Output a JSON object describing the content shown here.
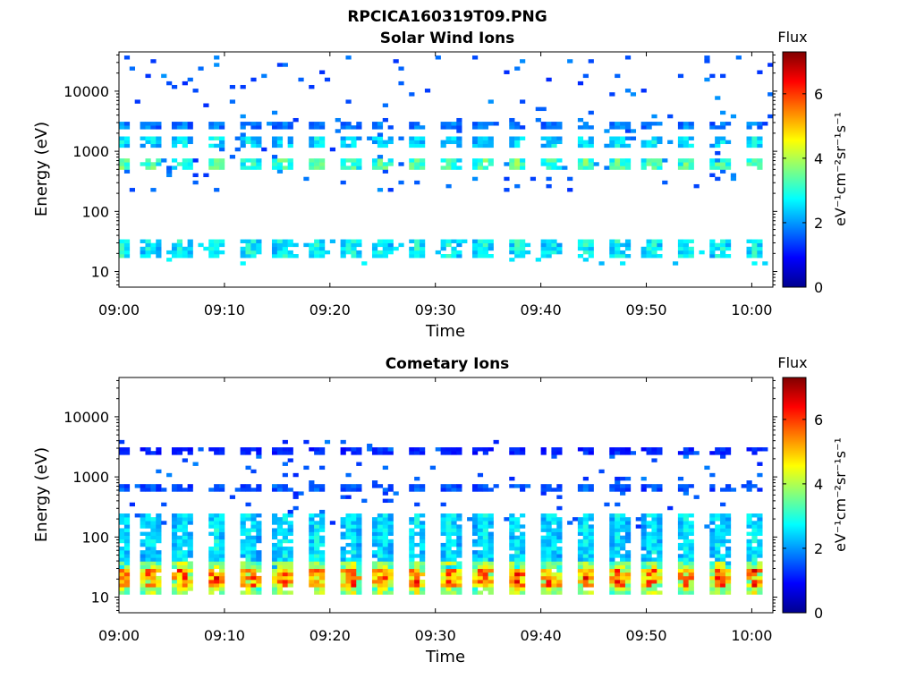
{
  "figure_title": "RPCICA160319T09.PNG",
  "colors": {
    "colormap": [
      "#00008f",
      "#0000ff",
      "#0080ff",
      "#00ffff",
      "#80ff80",
      "#ffff00",
      "#ff8000",
      "#ff0000",
      "#800000"
    ],
    "axis": "#000000",
    "background": "#ffffff"
  },
  "chart_data": [
    {
      "type": "heatmap",
      "title": "Solar Wind Ions",
      "xlabel": "Time",
      "ylabel": "Energy (eV)",
      "yscale": "log",
      "ylim": [
        5.5,
        45000
      ],
      "xlim": [
        "09:00",
        "10:02"
      ],
      "x_ticks": [
        "09:00",
        "09:10",
        "09:20",
        "09:30",
        "09:40",
        "09:50",
        "10:00"
      ],
      "y_ticks": [
        "10",
        "100",
        "1000",
        "10000"
      ],
      "colorbar": {
        "label": "eV⁻¹cm⁻²sr⁻¹s⁻¹",
        "title": "Flux",
        "range": [
          0,
          7.3
        ],
        "ticks": [
          "0",
          "2",
          "4",
          "6"
        ]
      },
      "grid": false,
      "pattern": {
        "burst_times_min": [
          0.3,
          3.0,
          6.0,
          9.2,
          12.4,
          15.6,
          18.8,
          22.0,
          25.0,
          28.2,
          31.4,
          34.6,
          37.8,
          41.0,
          44.2,
          47.4,
          50.6,
          53.8,
          57.0,
          60.2
        ],
        "bands": [
          {
            "energy_ev": [
              500,
              800
            ],
            "flux": 3.6
          },
          {
            "energy_ev": [
              1100,
              1700
            ],
            "flux": 2.8
          },
          {
            "energy_ev": [
              2200,
              3300
            ],
            "flux": 2.0
          },
          {
            "energy_ev": [
              18,
              33
            ],
            "flux": 3.0
          }
        ],
        "background_energy_ev": [
          200,
          40000
        ],
        "background_flux": 1.6
      }
    },
    {
      "type": "heatmap",
      "title": "Cometary Ions",
      "xlabel": "Time",
      "ylabel": "Energy (eV)",
      "yscale": "log",
      "ylim": [
        5.5,
        45000
      ],
      "xlim": [
        "09:00",
        "10:02"
      ],
      "x_ticks": [
        "09:00",
        "09:10",
        "09:20",
        "09:30",
        "09:40",
        "09:50",
        "10:00"
      ],
      "y_ticks": [
        "10",
        "100",
        "1000",
        "10000"
      ],
      "colorbar": {
        "label": "eV⁻¹cm⁻²sr⁻¹s⁻¹",
        "title": "Flux",
        "range": [
          0,
          7.3
        ],
        "ticks": [
          "0",
          "2",
          "4",
          "6"
        ]
      },
      "grid": false,
      "pattern": {
        "burst_times_min": [
          0.3,
          3.0,
          6.0,
          9.2,
          12.4,
          15.6,
          18.8,
          22.0,
          25.0,
          28.2,
          31.4,
          34.6,
          37.8,
          41.0,
          44.2,
          47.4,
          50.6,
          53.8,
          57.0,
          60.2
        ],
        "bands": [
          {
            "energy_ev": [
              14,
              30
            ],
            "flux": 6.0
          },
          {
            "energy_ev": [
              11,
              40
            ],
            "flux": 4.4
          },
          {
            "energy_ev": [
              30,
              250
            ],
            "flux": 2.8
          },
          {
            "energy_ev": [
              550,
              750
            ],
            "flux": 1.7
          },
          {
            "energy_ev": [
              2200,
              3300
            ],
            "flux": 1.3
          }
        ],
        "background_energy_ev": [
          150,
          4000
        ],
        "background_flux": 1.5
      }
    }
  ]
}
